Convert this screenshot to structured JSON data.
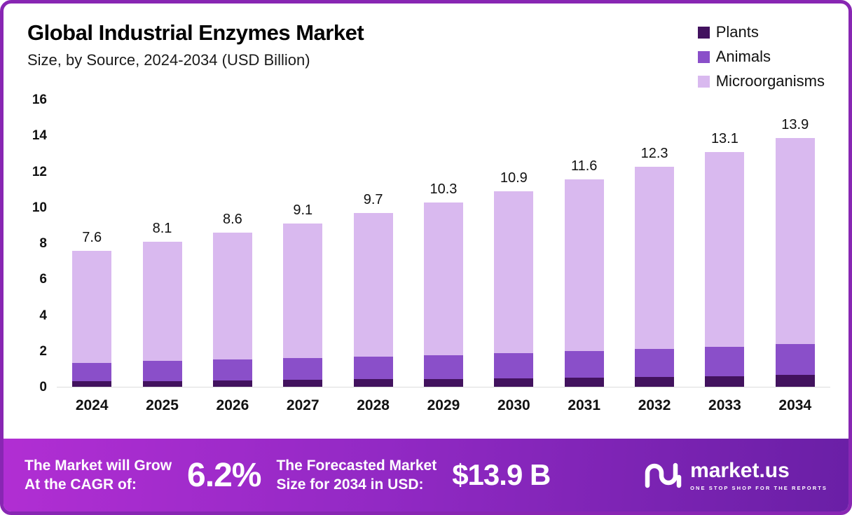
{
  "header": {
    "title": "Global Industrial Enzymes Market",
    "subtitle": "Size, by Source, 2024-2034 (USD Billion)"
  },
  "legend": [
    {
      "label": "Plants",
      "color": "#42125e"
    },
    {
      "label": "Animals",
      "color": "#8a4fc9"
    },
    {
      "label": "Microorganisms",
      "color": "#d9b9ef"
    }
  ],
  "chart_data": {
    "type": "bar",
    "stacked": true,
    "title": "Global Industrial Enzymes Market Size, by Source, 2024-2034 (USD Billion)",
    "categories": [
      "2024",
      "2025",
      "2026",
      "2027",
      "2028",
      "2029",
      "2030",
      "2031",
      "2032",
      "2033",
      "2034"
    ],
    "series": [
      {
        "name": "Plants",
        "color": "#42125e",
        "values": [
          0.3,
          0.33,
          0.36,
          0.39,
          0.42,
          0.45,
          0.48,
          0.52,
          0.56,
          0.6,
          0.65
        ]
      },
      {
        "name": "Animals",
        "color": "#8a4fc9",
        "values": [
          1.05,
          1.1,
          1.15,
          1.2,
          1.26,
          1.32,
          1.4,
          1.48,
          1.56,
          1.65,
          1.75
        ]
      },
      {
        "name": "Microorganisms",
        "color": "#d9b9ef",
        "values": [
          6.25,
          6.67,
          7.09,
          7.51,
          8.02,
          8.53,
          9.02,
          9.6,
          10.18,
          10.85,
          11.5
        ]
      }
    ],
    "totals": [
      "7.6",
      "8.1",
      "8.6",
      "9.1",
      "9.7",
      "10.3",
      "10.9",
      "11.6",
      "12.3",
      "13.1",
      "13.9"
    ],
    "xlabel": "",
    "ylabel": "",
    "ylim": [
      0,
      16
    ],
    "yticks": [
      0,
      2,
      4,
      6,
      8,
      10,
      12,
      14,
      16
    ],
    "grid": false,
    "legend_position": "top-right"
  },
  "banner": {
    "cagr_label": "The Market will Grow\nAt the CAGR of:",
    "cagr_value": "6.2%",
    "forecast_label": "The Forecasted Market\nSize for 2034 in USD:",
    "forecast_value": "$13.9 B",
    "brand": {
      "name": "market.us",
      "tagline": "ONE STOP SHOP FOR THE REPORTS"
    }
  },
  "colors": {
    "border": "#8826b3",
    "banner_gradient_start": "#b12ed3",
    "banner_gradient_end": "#6a1fa6"
  }
}
